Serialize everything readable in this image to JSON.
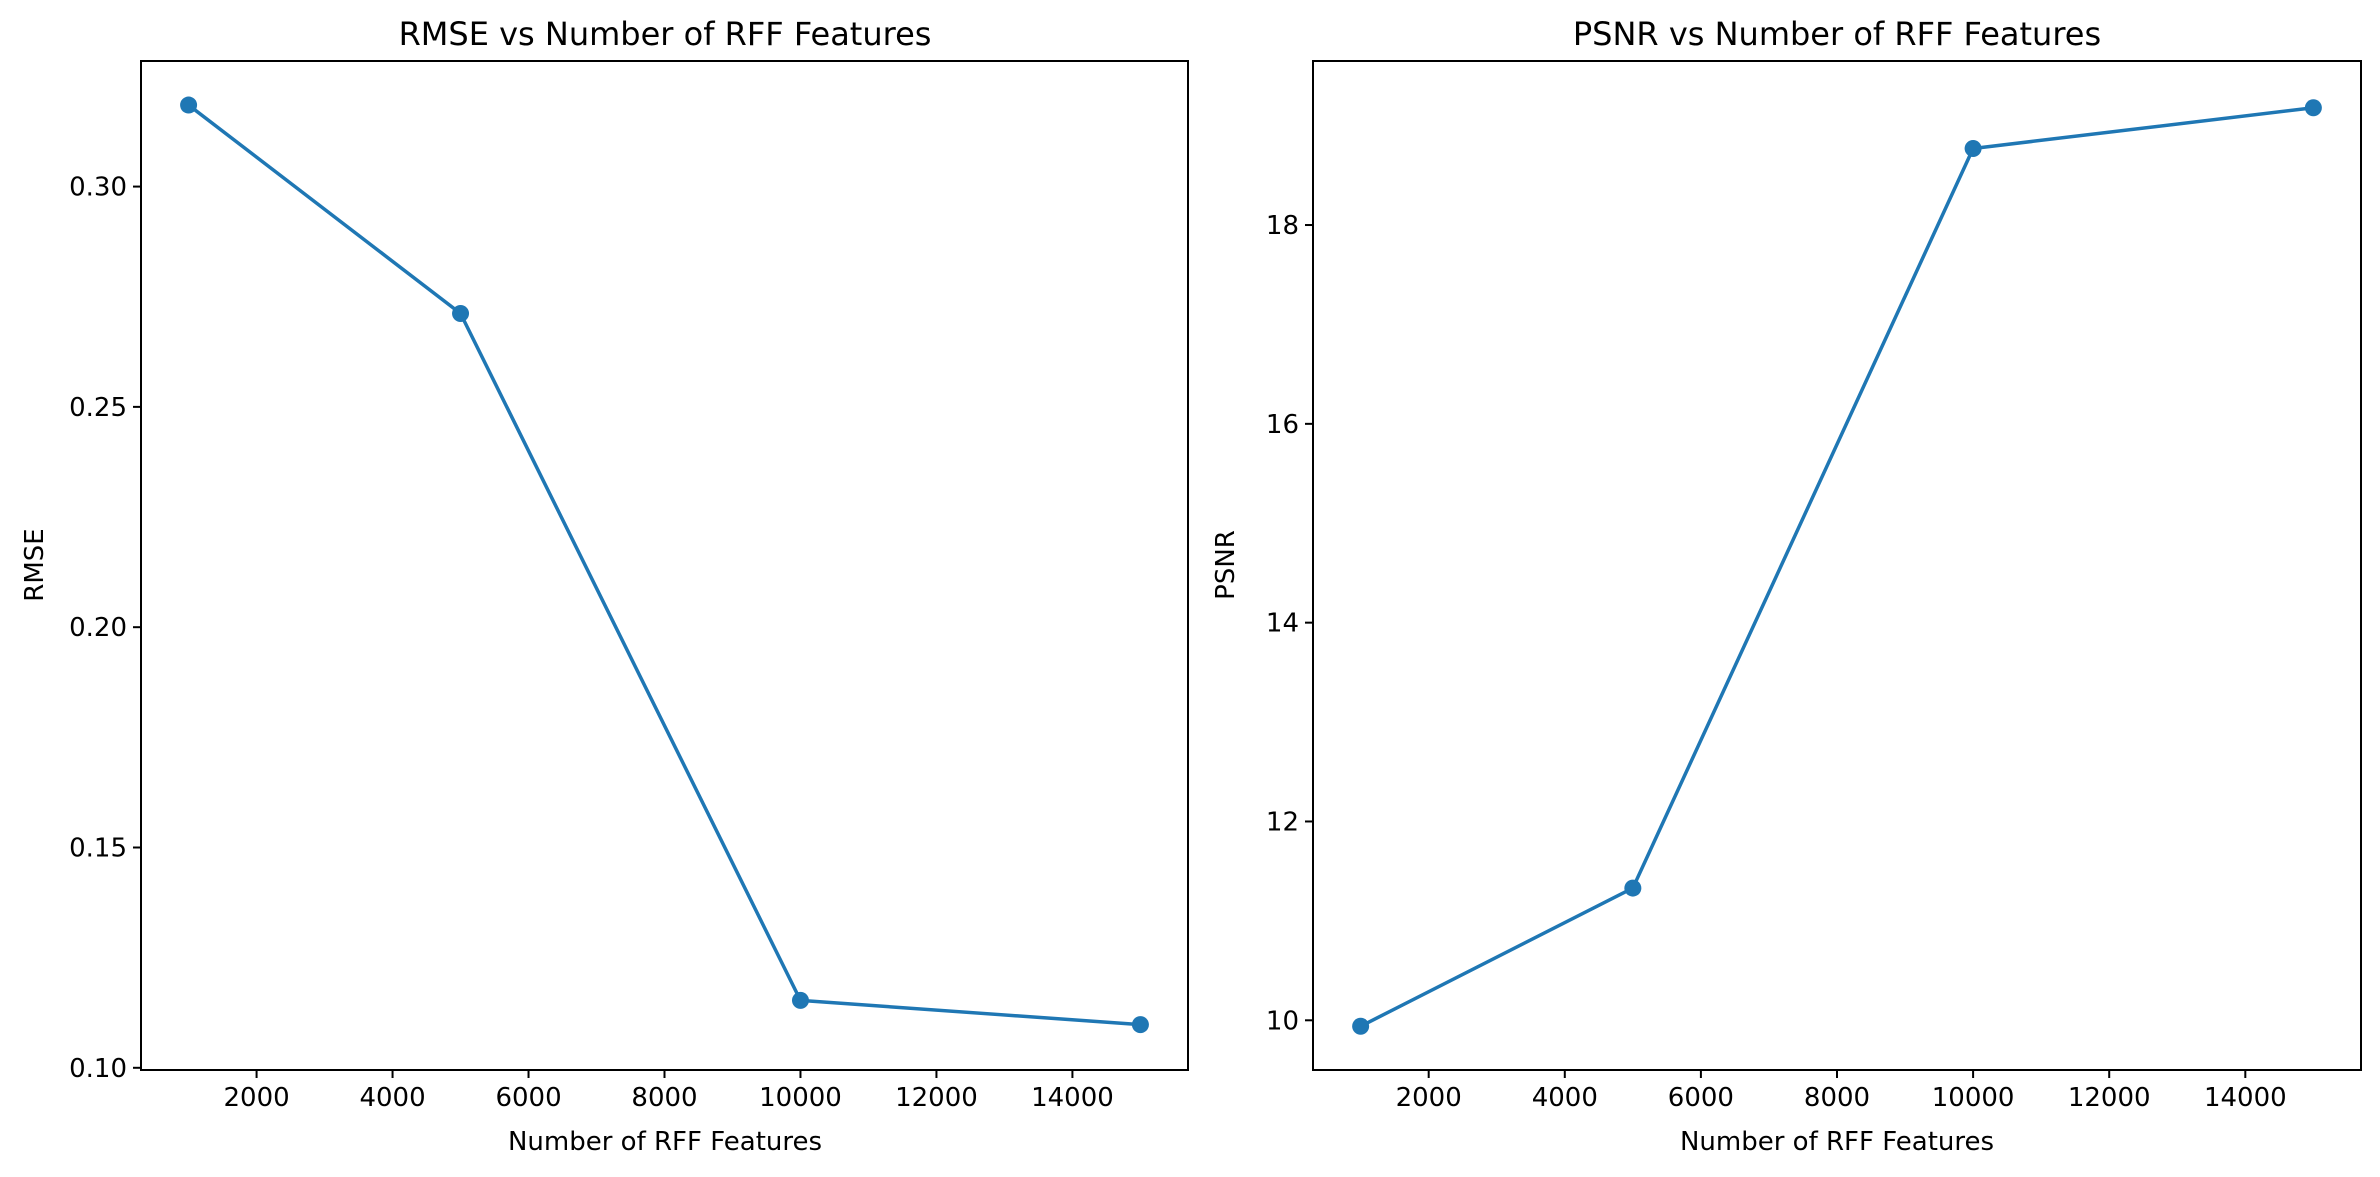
{
  "chart_data": [
    {
      "type": "line",
      "title": "RMSE vs Number of RFF Features",
      "xlabel": "Number of RFF Features",
      "ylabel": "RMSE",
      "x": [
        1000,
        5000,
        10000,
        15000
      ],
      "series": [
        {
          "values": [
            0.3185,
            0.2712,
            0.1153,
            0.1098
          ]
        }
      ],
      "xlim": [
        300,
        15700
      ],
      "ylim": [
        0.0995,
        0.3285
      ],
      "xticks": [
        2000,
        4000,
        6000,
        8000,
        10000,
        12000,
        14000
      ],
      "xtick_labels": [
        "2000",
        "4000",
        "6000",
        "8000",
        "10000",
        "12000",
        "14000"
      ],
      "yticks": [
        0.1,
        0.15,
        0.2,
        0.25,
        0.3
      ],
      "ytick_labels": [
        "0.10",
        "0.15",
        "0.20",
        "0.25",
        "0.30"
      ],
      "grid": false,
      "marker": "circle",
      "color": "#1f77b4"
    },
    {
      "type": "line",
      "title": "PSNR vs Number of RFF Features",
      "xlabel": "Number of RFF Features",
      "ylabel": "PSNR",
      "x": [
        1000,
        5000,
        10000,
        15000
      ],
      "series": [
        {
          "values": [
            9.94,
            11.33,
            18.77,
            19.18
          ]
        }
      ],
      "xlim": [
        300,
        15700
      ],
      "ylim": [
        9.5,
        19.65
      ],
      "xticks": [
        2000,
        4000,
        6000,
        8000,
        10000,
        12000,
        14000
      ],
      "xtick_labels": [
        "2000",
        "4000",
        "6000",
        "8000",
        "10000",
        "12000",
        "14000"
      ],
      "yticks": [
        10,
        12,
        14,
        16,
        18
      ],
      "ytick_labels": [
        "10",
        "12",
        "14",
        "16",
        "18"
      ],
      "grid": false,
      "marker": "circle",
      "color": "#1f77b4"
    }
  ]
}
